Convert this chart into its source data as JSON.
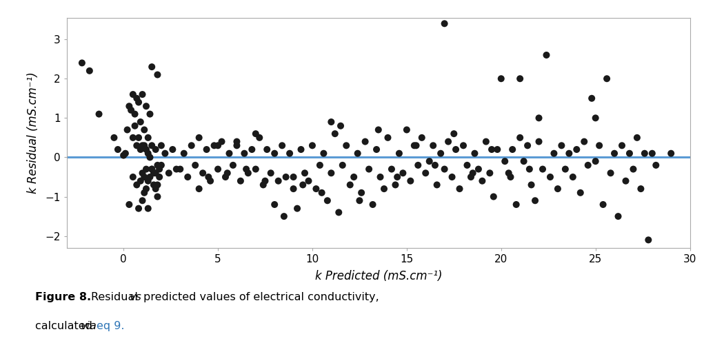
{
  "scatter_points": [
    [
      -2.2,
      2.4
    ],
    [
      -1.8,
      2.2
    ],
    [
      -1.3,
      1.1
    ],
    [
      -0.5,
      0.5
    ],
    [
      -0.3,
      0.2
    ],
    [
      0.0,
      0.05
    ],
    [
      0.1,
      0.1
    ],
    [
      0.2,
      0.7
    ],
    [
      0.3,
      1.3
    ],
    [
      0.4,
      1.2
    ],
    [
      0.5,
      1.6
    ],
    [
      0.5,
      0.5
    ],
    [
      0.6,
      1.1
    ],
    [
      0.6,
      0.8
    ],
    [
      0.7,
      1.5
    ],
    [
      0.7,
      0.3
    ],
    [
      0.8,
      1.4
    ],
    [
      0.8,
      0.5
    ],
    [
      0.9,
      0.9
    ],
    [
      0.9,
      0.2
    ],
    [
      1.0,
      1.6
    ],
    [
      1.0,
      0.3
    ],
    [
      1.0,
      -0.4
    ],
    [
      1.1,
      0.7
    ],
    [
      1.1,
      0.3
    ],
    [
      1.1,
      -0.5
    ],
    [
      1.2,
      1.3
    ],
    [
      1.2,
      0.2
    ],
    [
      1.2,
      -0.3
    ],
    [
      1.3,
      0.5
    ],
    [
      1.3,
      0.1
    ],
    [
      1.3,
      -0.6
    ],
    [
      1.4,
      1.1
    ],
    [
      1.4,
      0.0
    ],
    [
      1.4,
      -0.5
    ],
    [
      1.5,
      2.3
    ],
    [
      1.5,
      0.3
    ],
    [
      1.5,
      -0.3
    ],
    [
      1.6,
      -0.4
    ],
    [
      1.6,
      -0.7
    ],
    [
      1.7,
      0.2
    ],
    [
      1.7,
      -0.4
    ],
    [
      1.7,
      -0.8
    ],
    [
      1.8,
      2.1
    ],
    [
      1.8,
      -0.2
    ],
    [
      1.8,
      -0.7
    ],
    [
      1.8,
      -1.0
    ],
    [
      1.9,
      -0.3
    ],
    [
      1.9,
      -0.5
    ],
    [
      0.3,
      -1.2
    ],
    [
      0.5,
      -0.5
    ],
    [
      0.7,
      -0.7
    ],
    [
      0.8,
      -1.3
    ],
    [
      0.9,
      -0.6
    ],
    [
      1.0,
      -1.1
    ],
    [
      1.1,
      -0.9
    ],
    [
      1.2,
      -0.8
    ],
    [
      1.3,
      -1.3
    ],
    [
      1.5,
      -0.3
    ],
    [
      2.0,
      -0.2
    ],
    [
      2.0,
      0.3
    ],
    [
      2.2,
      0.1
    ],
    [
      2.4,
      -0.4
    ],
    [
      2.6,
      0.2
    ],
    [
      2.8,
      -0.3
    ],
    [
      3.0,
      -0.3
    ],
    [
      3.2,
      0.1
    ],
    [
      3.4,
      -0.5
    ],
    [
      3.6,
      0.3
    ],
    [
      3.8,
      -0.2
    ],
    [
      4.0,
      0.5
    ],
    [
      4.0,
      -0.8
    ],
    [
      4.2,
      -0.4
    ],
    [
      4.4,
      0.2
    ],
    [
      4.5,
      -0.5
    ],
    [
      4.6,
      -0.6
    ],
    [
      4.8,
      0.3
    ],
    [
      5.0,
      -0.3
    ],
    [
      5.0,
      0.3
    ],
    [
      5.2,
      0.4
    ],
    [
      5.4,
      -0.5
    ],
    [
      5.5,
      -0.4
    ],
    [
      5.6,
      0.1
    ],
    [
      5.8,
      -0.2
    ],
    [
      6.0,
      0.3
    ],
    [
      6.0,
      0.4
    ],
    [
      6.2,
      -0.6
    ],
    [
      6.4,
      0.1
    ],
    [
      6.5,
      -0.3
    ],
    [
      6.6,
      -0.4
    ],
    [
      6.8,
      0.2
    ],
    [
      7.0,
      -0.3
    ],
    [
      7.0,
      0.6
    ],
    [
      7.2,
      0.5
    ],
    [
      7.4,
      -0.7
    ],
    [
      7.5,
      -0.6
    ],
    [
      7.6,
      0.2
    ],
    [
      7.8,
      -0.4
    ],
    [
      8.0,
      0.1
    ],
    [
      8.0,
      -1.2
    ],
    [
      8.2,
      -0.6
    ],
    [
      8.4,
      0.3
    ],
    [
      8.5,
      -1.5
    ],
    [
      8.6,
      -0.5
    ],
    [
      8.8,
      0.1
    ],
    [
      9.0,
      -0.8
    ],
    [
      9.0,
      -0.5
    ],
    [
      9.2,
      -1.3
    ],
    [
      9.4,
      0.2
    ],
    [
      9.5,
      -0.7
    ],
    [
      9.6,
      -0.4
    ],
    [
      9.8,
      -0.6
    ],
    [
      10.0,
      0.3
    ],
    [
      10.2,
      -0.8
    ],
    [
      10.4,
      -0.2
    ],
    [
      10.5,
      -0.9
    ],
    [
      10.6,
      0.1
    ],
    [
      10.8,
      -1.1
    ],
    [
      11.0,
      -0.4
    ],
    [
      11.0,
      0.9
    ],
    [
      11.2,
      0.6
    ],
    [
      11.4,
      -1.4
    ],
    [
      11.5,
      0.8
    ],
    [
      11.6,
      -0.2
    ],
    [
      11.8,
      0.3
    ],
    [
      12.0,
      -0.7
    ],
    [
      12.2,
      -0.5
    ],
    [
      12.4,
      0.1
    ],
    [
      12.5,
      -1.1
    ],
    [
      12.6,
      -0.9
    ],
    [
      12.8,
      0.4
    ],
    [
      13.0,
      -0.3
    ],
    [
      13.2,
      -1.2
    ],
    [
      13.4,
      0.2
    ],
    [
      13.5,
      0.7
    ],
    [
      13.6,
      -0.5
    ],
    [
      13.8,
      -0.8
    ],
    [
      14.0,
      0.5
    ],
    [
      14.2,
      -0.3
    ],
    [
      14.4,
      -0.7
    ],
    [
      14.5,
      -0.5
    ],
    [
      14.6,
      0.1
    ],
    [
      14.8,
      -0.4
    ],
    [
      15.0,
      0.7
    ],
    [
      15.2,
      -0.6
    ],
    [
      15.4,
      0.3
    ],
    [
      15.5,
      0.3
    ],
    [
      15.6,
      -0.2
    ],
    [
      15.8,
      0.5
    ],
    [
      16.0,
      -0.4
    ],
    [
      16.2,
      -0.1
    ],
    [
      16.4,
      0.3
    ],
    [
      16.5,
      -0.2
    ],
    [
      16.6,
      -0.7
    ],
    [
      16.8,
      0.1
    ],
    [
      17.0,
      -0.3
    ],
    [
      17.0,
      3.4
    ],
    [
      17.2,
      0.4
    ],
    [
      17.4,
      -0.5
    ],
    [
      17.5,
      0.6
    ],
    [
      17.6,
      0.2
    ],
    [
      17.8,
      -0.8
    ],
    [
      18.0,
      0.3
    ],
    [
      18.2,
      -0.2
    ],
    [
      18.4,
      -0.5
    ],
    [
      18.5,
      -0.4
    ],
    [
      18.6,
      0.1
    ],
    [
      18.8,
      -0.3
    ],
    [
      19.0,
      -0.6
    ],
    [
      19.2,
      0.4
    ],
    [
      19.4,
      -0.4
    ],
    [
      19.5,
      0.2
    ],
    [
      19.6,
      -1.0
    ],
    [
      19.8,
      0.2
    ],
    [
      20.0,
      2.0
    ],
    [
      20.2,
      -0.1
    ],
    [
      20.4,
      -0.4
    ],
    [
      20.5,
      -0.5
    ],
    [
      20.6,
      0.2
    ],
    [
      20.8,
      -1.2
    ],
    [
      21.0,
      0.5
    ],
    [
      21.0,
      2.0
    ],
    [
      21.2,
      -0.1
    ],
    [
      21.4,
      0.3
    ],
    [
      21.5,
      -0.3
    ],
    [
      21.6,
      -0.7
    ],
    [
      21.8,
      -1.1
    ],
    [
      22.0,
      0.4
    ],
    [
      22.0,
      1.0
    ],
    [
      22.2,
      -0.3
    ],
    [
      22.4,
      2.6
    ],
    [
      22.6,
      -0.5
    ],
    [
      22.8,
      0.1
    ],
    [
      23.0,
      -0.8
    ],
    [
      23.2,
      0.3
    ],
    [
      23.4,
      -0.3
    ],
    [
      23.6,
      0.1
    ],
    [
      23.8,
      -0.5
    ],
    [
      24.0,
      0.2
    ],
    [
      24.2,
      -0.9
    ],
    [
      24.4,
      0.4
    ],
    [
      24.6,
      -0.2
    ],
    [
      24.8,
      1.5
    ],
    [
      25.0,
      -0.1
    ],
    [
      25.0,
      1.0
    ],
    [
      25.2,
      0.3
    ],
    [
      25.4,
      -1.2
    ],
    [
      25.6,
      2.0
    ],
    [
      25.8,
      -0.4
    ],
    [
      26.0,
      0.1
    ],
    [
      26.2,
      -1.5
    ],
    [
      26.4,
      0.3
    ],
    [
      26.6,
      -0.6
    ],
    [
      26.8,
      0.1
    ],
    [
      27.0,
      -0.3
    ],
    [
      27.2,
      0.5
    ],
    [
      27.4,
      -0.8
    ],
    [
      27.6,
      0.1
    ],
    [
      27.8,
      -2.1
    ],
    [
      28.0,
      0.1
    ],
    [
      28.2,
      -0.2
    ],
    [
      29.0,
      0.1
    ]
  ],
  "xlim": [
    -3,
    30
  ],
  "ylim": [
    -2.3,
    3.55
  ],
  "xticks": [
    0,
    5,
    10,
    15,
    20,
    25,
    30
  ],
  "yticks": [
    -2,
    -1,
    0,
    1,
    2,
    3
  ],
  "xlabel": "k Predicted (mS.cm⁻¹)",
  "ylabel": "k Residual (mS.cm⁻¹)",
  "hline_color": "#5B9BD5",
  "marker_color": "#1a1a1a",
  "background_color": "#ffffff"
}
